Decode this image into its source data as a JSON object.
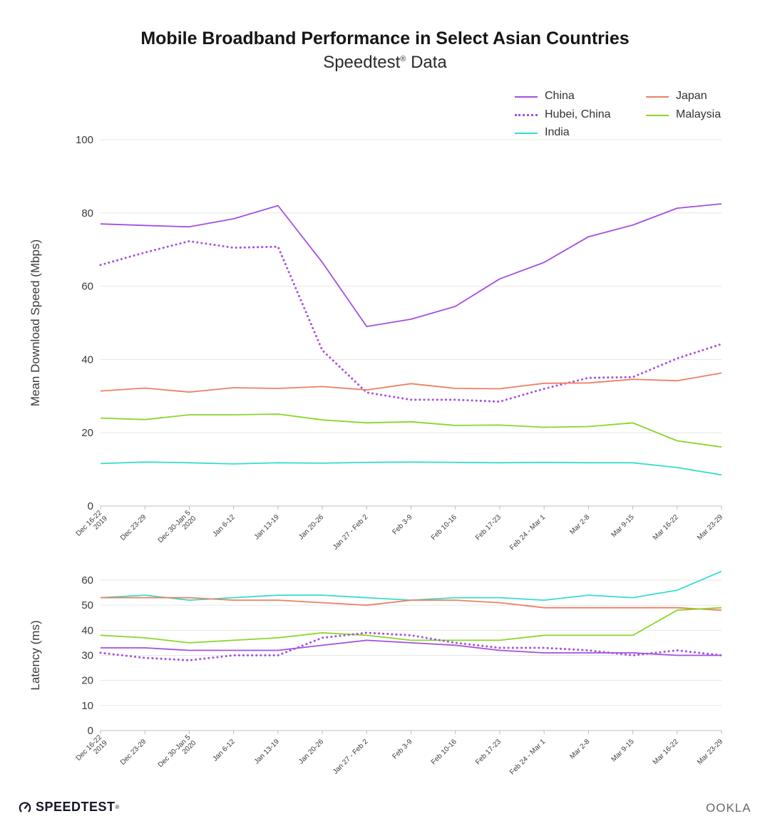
{
  "header": {
    "title": "Mobile Broadband Performance in Select Asian Countries",
    "subtitle": "Speedtest",
    "subtitle_mark": "®",
    "subtitle_suffix": " Data"
  },
  "footer": {
    "brand": "SPEEDTEST",
    "brand_mark": "®",
    "ookla": "OOKLA"
  },
  "colors": {
    "China": "#a350e0",
    "Hubei, China": "#a350e0",
    "India": "#37dccb",
    "Japan": "#ef7f62",
    "Malaysia": "#8ad628"
  },
  "legend": [
    {
      "name": "China",
      "style": "solid"
    },
    {
      "name": "Hubei, China",
      "style": "dotted"
    },
    {
      "name": "India",
      "style": "solid"
    },
    {
      "name": "Japan",
      "style": "solid"
    },
    {
      "name": "Malaysia",
      "style": "solid"
    }
  ],
  "chart_data": [
    {
      "type": "line",
      "ylabel": "Mean Download Speed (Mbps)",
      "ylim": [
        0,
        100
      ],
      "yticks": [
        0,
        20,
        40,
        60,
        80,
        100
      ],
      "grid": true,
      "legend_position": "top-right",
      "categories": [
        [
          "Dec 16-22",
          "2019"
        ],
        [
          "Dec 23-29"
        ],
        [
          "Dec 30-Jan 5",
          "2020"
        ],
        [
          "Jan 6-12"
        ],
        [
          "Jan 13-19"
        ],
        [
          "Jan 20-26"
        ],
        [
          "Jan 27 - Feb 2"
        ],
        [
          "Feb 3-9"
        ],
        [
          "Feb 10-16"
        ],
        [
          "Feb 17-23"
        ],
        [
          "Feb 24 - Mar 1"
        ],
        [
          "Mar 2-8"
        ],
        [
          "Mar 9-15"
        ],
        [
          "Mar 16-22"
        ],
        [
          "Mar 23-29"
        ]
      ],
      "series": [
        {
          "name": "China",
          "style": "solid",
          "values": [
            77,
            76.6,
            76.2,
            78.4,
            82,
            66.5,
            49,
            51,
            54.5,
            62,
            66.5,
            73.5,
            76.7,
            81.3,
            82.5
          ]
        },
        {
          "name": "Hubei, China",
          "style": "dotted",
          "values": [
            65.8,
            69.2,
            72.3,
            70.5,
            70.8,
            42.5,
            31,
            29,
            29,
            28.5,
            32,
            35,
            35.2,
            40.3,
            44.2
          ]
        },
        {
          "name": "Japan",
          "style": "solid",
          "values": [
            31.4,
            32.2,
            31.1,
            32.3,
            32.1,
            32.6,
            31.7,
            33.4,
            32.1,
            32,
            33.5,
            33.6,
            34.6,
            34.2,
            36.3
          ]
        },
        {
          "name": "Malaysia",
          "style": "solid",
          "values": [
            24,
            23.6,
            24.9,
            24.9,
            25.1,
            23.5,
            22.7,
            23,
            22,
            22.1,
            21.5,
            21.7,
            22.7,
            17.8,
            16.1
          ]
        },
        {
          "name": "India",
          "style": "solid",
          "values": [
            11.6,
            12,
            11.8,
            11.5,
            11.8,
            11.7,
            11.9,
            12,
            11.9,
            11.8,
            11.9,
            11.8,
            11.8,
            10.5,
            8.5
          ]
        }
      ]
    },
    {
      "type": "line",
      "ylabel": "Latency (ms)",
      "ylim": [
        0,
        60
      ],
      "yticks": [
        0,
        10,
        20,
        30,
        40,
        50,
        60
      ],
      "grid": true,
      "categories": [
        [
          "Dec 16-22",
          "2019"
        ],
        [
          "Dec 23-29"
        ],
        [
          "Dec 30-Jan 5",
          "2020"
        ],
        [
          "Jan 6-12"
        ],
        [
          "Jan 13-19"
        ],
        [
          "Jan 20-26"
        ],
        [
          "Jan 27 - Feb 2"
        ],
        [
          "Feb 3-9"
        ],
        [
          "Feb 10-16"
        ],
        [
          "Feb 17-23"
        ],
        [
          "Feb 24 - Mar 1"
        ],
        [
          "Mar 2-8"
        ],
        [
          "Mar 9-15"
        ],
        [
          "Mar 16-22"
        ],
        [
          "Mar 23-29"
        ]
      ],
      "series": [
        {
          "name": "India",
          "style": "solid",
          "values": [
            53,
            54,
            52,
            53,
            54,
            54,
            53,
            52,
            53,
            53,
            52,
            54,
            53,
            56,
            63.5
          ]
        },
        {
          "name": "Japan",
          "style": "solid",
          "values": [
            53,
            53,
            53,
            52,
            52,
            51,
            50,
            52,
            52,
            51,
            49,
            49,
            49,
            49,
            48
          ]
        },
        {
          "name": "Malaysia",
          "style": "solid",
          "values": [
            38,
            37,
            35,
            36,
            37,
            39,
            38,
            36,
            36,
            36,
            38,
            38,
            38,
            48,
            49
          ]
        },
        {
          "name": "China",
          "style": "solid",
          "values": [
            33,
            33,
            32,
            32,
            32,
            34,
            36,
            35,
            34,
            32,
            31,
            31,
            31,
            30,
            30
          ]
        },
        {
          "name": "Hubei, China",
          "style": "dotted",
          "values": [
            31,
            29,
            28,
            30,
            30,
            37,
            39,
            38,
            35,
            33,
            33,
            32,
            30,
            32,
            30
          ]
        }
      ]
    }
  ]
}
